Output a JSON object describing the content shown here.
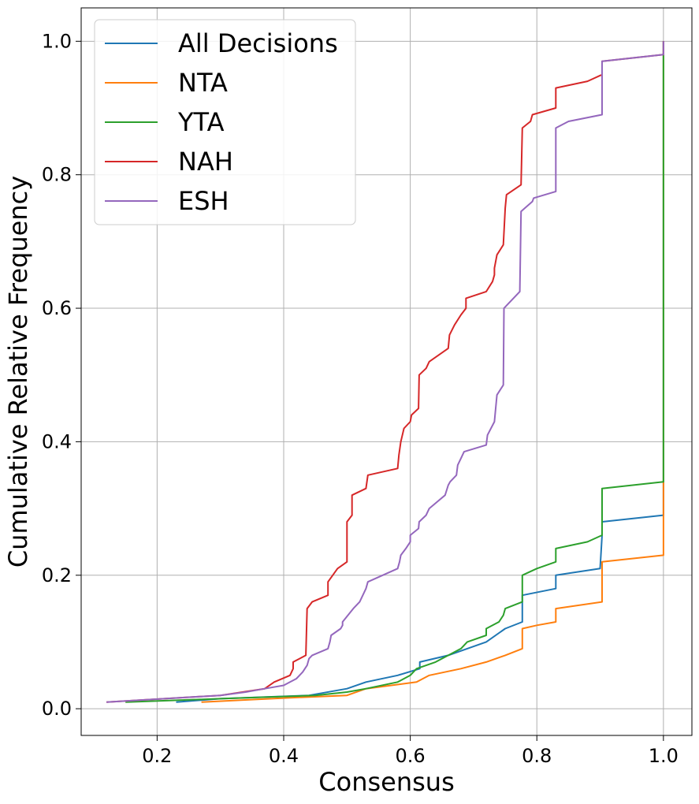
{
  "chart_data": {
    "type": "line",
    "xlabel": "Consensus",
    "ylabel": "Cumulative Relative Frequency",
    "xlim": [
      0.08,
      1.045
    ],
    "ylim": [
      -0.04,
      1.05
    ],
    "xticks": [
      0.2,
      0.4,
      0.6,
      0.8,
      1.0
    ],
    "xtick_labels": [
      "0.2",
      "0.4",
      "0.6",
      "0.8",
      "1.0"
    ],
    "yticks": [
      0.0,
      0.2,
      0.4,
      0.6,
      0.8,
      1.0
    ],
    "ytick_labels": [
      "0.0",
      "0.2",
      "0.4",
      "0.6",
      "0.8",
      "1.0"
    ],
    "grid": true,
    "legend_position": "top-left",
    "series": [
      {
        "name": "All Decisions",
        "color": "#1f77b4",
        "points": [
          [
            0.23,
            0.01
          ],
          [
            0.3,
            0.015
          ],
          [
            0.44,
            0.02
          ],
          [
            0.5,
            0.03
          ],
          [
            0.53,
            0.04
          ],
          [
            0.58,
            0.05
          ],
          [
            0.615,
            0.06
          ],
          [
            0.615,
            0.07
          ],
          [
            0.66,
            0.08
          ],
          [
            0.69,
            0.09
          ],
          [
            0.72,
            0.1
          ],
          [
            0.75,
            0.12
          ],
          [
            0.777,
            0.13
          ],
          [
            0.777,
            0.17
          ],
          [
            0.83,
            0.18
          ],
          [
            0.83,
            0.2
          ],
          [
            0.9,
            0.21
          ],
          [
            0.903,
            0.26
          ],
          [
            0.903,
            0.28
          ],
          [
            1.0,
            0.29
          ],
          [
            1.0,
            1.0
          ]
        ]
      },
      {
        "name": "NTA",
        "color": "#ff7f0e",
        "points": [
          [
            0.27,
            0.01
          ],
          [
            0.4,
            0.016
          ],
          [
            0.5,
            0.02
          ],
          [
            0.53,
            0.03
          ],
          [
            0.61,
            0.04
          ],
          [
            0.63,
            0.05
          ],
          [
            0.68,
            0.06
          ],
          [
            0.72,
            0.07
          ],
          [
            0.75,
            0.08
          ],
          [
            0.777,
            0.09
          ],
          [
            0.777,
            0.12
          ],
          [
            0.8,
            0.125
          ],
          [
            0.83,
            0.13
          ],
          [
            0.83,
            0.15
          ],
          [
            0.903,
            0.16
          ],
          [
            0.903,
            0.22
          ],
          [
            1.0,
            0.23
          ],
          [
            1.0,
            1.0
          ]
        ]
      },
      {
        "name": "YTA",
        "color": "#2ca02c",
        "points": [
          [
            0.15,
            0.01
          ],
          [
            0.3,
            0.015
          ],
          [
            0.45,
            0.02
          ],
          [
            0.5,
            0.025
          ],
          [
            0.53,
            0.03
          ],
          [
            0.58,
            0.04
          ],
          [
            0.6,
            0.05
          ],
          [
            0.61,
            0.06
          ],
          [
            0.64,
            0.07
          ],
          [
            0.66,
            0.08
          ],
          [
            0.68,
            0.09
          ],
          [
            0.69,
            0.1
          ],
          [
            0.72,
            0.11
          ],
          [
            0.72,
            0.12
          ],
          [
            0.74,
            0.13
          ],
          [
            0.747,
            0.14
          ],
          [
            0.75,
            0.15
          ],
          [
            0.777,
            0.16
          ],
          [
            0.777,
            0.2
          ],
          [
            0.8,
            0.21
          ],
          [
            0.83,
            0.22
          ],
          [
            0.83,
            0.24
          ],
          [
            0.88,
            0.25
          ],
          [
            0.903,
            0.26
          ],
          [
            0.903,
            0.33
          ],
          [
            1.0,
            0.34
          ],
          [
            1.0,
            1.0
          ]
        ]
      },
      {
        "name": "NAH",
        "color": "#d62728",
        "points": [
          [
            0.12,
            0.01
          ],
          [
            0.3,
            0.02
          ],
          [
            0.37,
            0.03
          ],
          [
            0.385,
            0.04
          ],
          [
            0.41,
            0.05
          ],
          [
            0.415,
            0.06
          ],
          [
            0.415,
            0.07
          ],
          [
            0.435,
            0.08
          ],
          [
            0.437,
            0.15
          ],
          [
            0.445,
            0.16
          ],
          [
            0.47,
            0.17
          ],
          [
            0.47,
            0.19
          ],
          [
            0.485,
            0.21
          ],
          [
            0.5,
            0.22
          ],
          [
            0.5,
            0.28
          ],
          [
            0.508,
            0.29
          ],
          [
            0.508,
            0.32
          ],
          [
            0.53,
            0.33
          ],
          [
            0.533,
            0.35
          ],
          [
            0.58,
            0.36
          ],
          [
            0.582,
            0.38
          ],
          [
            0.585,
            0.4
          ],
          [
            0.59,
            0.42
          ],
          [
            0.6,
            0.43
          ],
          [
            0.602,
            0.44
          ],
          [
            0.613,
            0.45
          ],
          [
            0.614,
            0.5
          ],
          [
            0.625,
            0.51
          ],
          [
            0.63,
            0.52
          ],
          [
            0.66,
            0.54
          ],
          [
            0.662,
            0.56
          ],
          [
            0.67,
            0.575
          ],
          [
            0.68,
            0.59
          ],
          [
            0.688,
            0.6
          ],
          [
            0.688,
            0.615
          ],
          [
            0.72,
            0.625
          ],
          [
            0.73,
            0.64
          ],
          [
            0.733,
            0.65
          ],
          [
            0.733,
            0.66
          ],
          [
            0.737,
            0.68
          ],
          [
            0.747,
            0.695
          ],
          [
            0.75,
            0.75
          ],
          [
            0.752,
            0.77
          ],
          [
            0.775,
            0.785
          ],
          [
            0.777,
            0.87
          ],
          [
            0.79,
            0.88
          ],
          [
            0.793,
            0.89
          ],
          [
            0.83,
            0.9
          ],
          [
            0.83,
            0.93
          ],
          [
            0.88,
            0.94
          ],
          [
            0.903,
            0.95
          ],
          [
            0.903,
            0.97
          ],
          [
            1.0,
            0.98
          ],
          [
            1.0,
            1.0
          ]
        ]
      },
      {
        "name": "ESH",
        "color": "#9467bd",
        "points": [
          [
            0.12,
            0.01
          ],
          [
            0.3,
            0.02
          ],
          [
            0.34,
            0.025
          ],
          [
            0.37,
            0.03
          ],
          [
            0.4,
            0.035
          ],
          [
            0.41,
            0.04
          ],
          [
            0.42,
            0.045
          ],
          [
            0.43,
            0.055
          ],
          [
            0.437,
            0.065
          ],
          [
            0.44,
            0.075
          ],
          [
            0.445,
            0.08
          ],
          [
            0.47,
            0.09
          ],
          [
            0.473,
            0.1
          ],
          [
            0.475,
            0.11
          ],
          [
            0.49,
            0.12
          ],
          [
            0.493,
            0.125
          ],
          [
            0.493,
            0.13
          ],
          [
            0.51,
            0.15
          ],
          [
            0.52,
            0.16
          ],
          [
            0.53,
            0.18
          ],
          [
            0.533,
            0.19
          ],
          [
            0.58,
            0.21
          ],
          [
            0.583,
            0.22
          ],
          [
            0.585,
            0.23
          ],
          [
            0.593,
            0.24
          ],
          [
            0.6,
            0.25
          ],
          [
            0.6,
            0.26
          ],
          [
            0.613,
            0.27
          ],
          [
            0.614,
            0.28
          ],
          [
            0.625,
            0.29
          ],
          [
            0.63,
            0.3
          ],
          [
            0.655,
            0.32
          ],
          [
            0.66,
            0.335
          ],
          [
            0.663,
            0.34
          ],
          [
            0.673,
            0.35
          ],
          [
            0.675,
            0.365
          ],
          [
            0.68,
            0.375
          ],
          [
            0.685,
            0.385
          ],
          [
            0.72,
            0.395
          ],
          [
            0.722,
            0.41
          ],
          [
            0.733,
            0.43
          ],
          [
            0.737,
            0.47
          ],
          [
            0.747,
            0.485
          ],
          [
            0.748,
            0.6
          ],
          [
            0.773,
            0.625
          ],
          [
            0.775,
            0.745
          ],
          [
            0.793,
            0.76
          ],
          [
            0.795,
            0.765
          ],
          [
            0.83,
            0.775
          ],
          [
            0.83,
            0.87
          ],
          [
            0.85,
            0.88
          ],
          [
            0.903,
            0.89
          ],
          [
            0.903,
            0.97
          ],
          [
            1.0,
            0.98
          ],
          [
            1.0,
            1.0
          ]
        ]
      }
    ]
  }
}
